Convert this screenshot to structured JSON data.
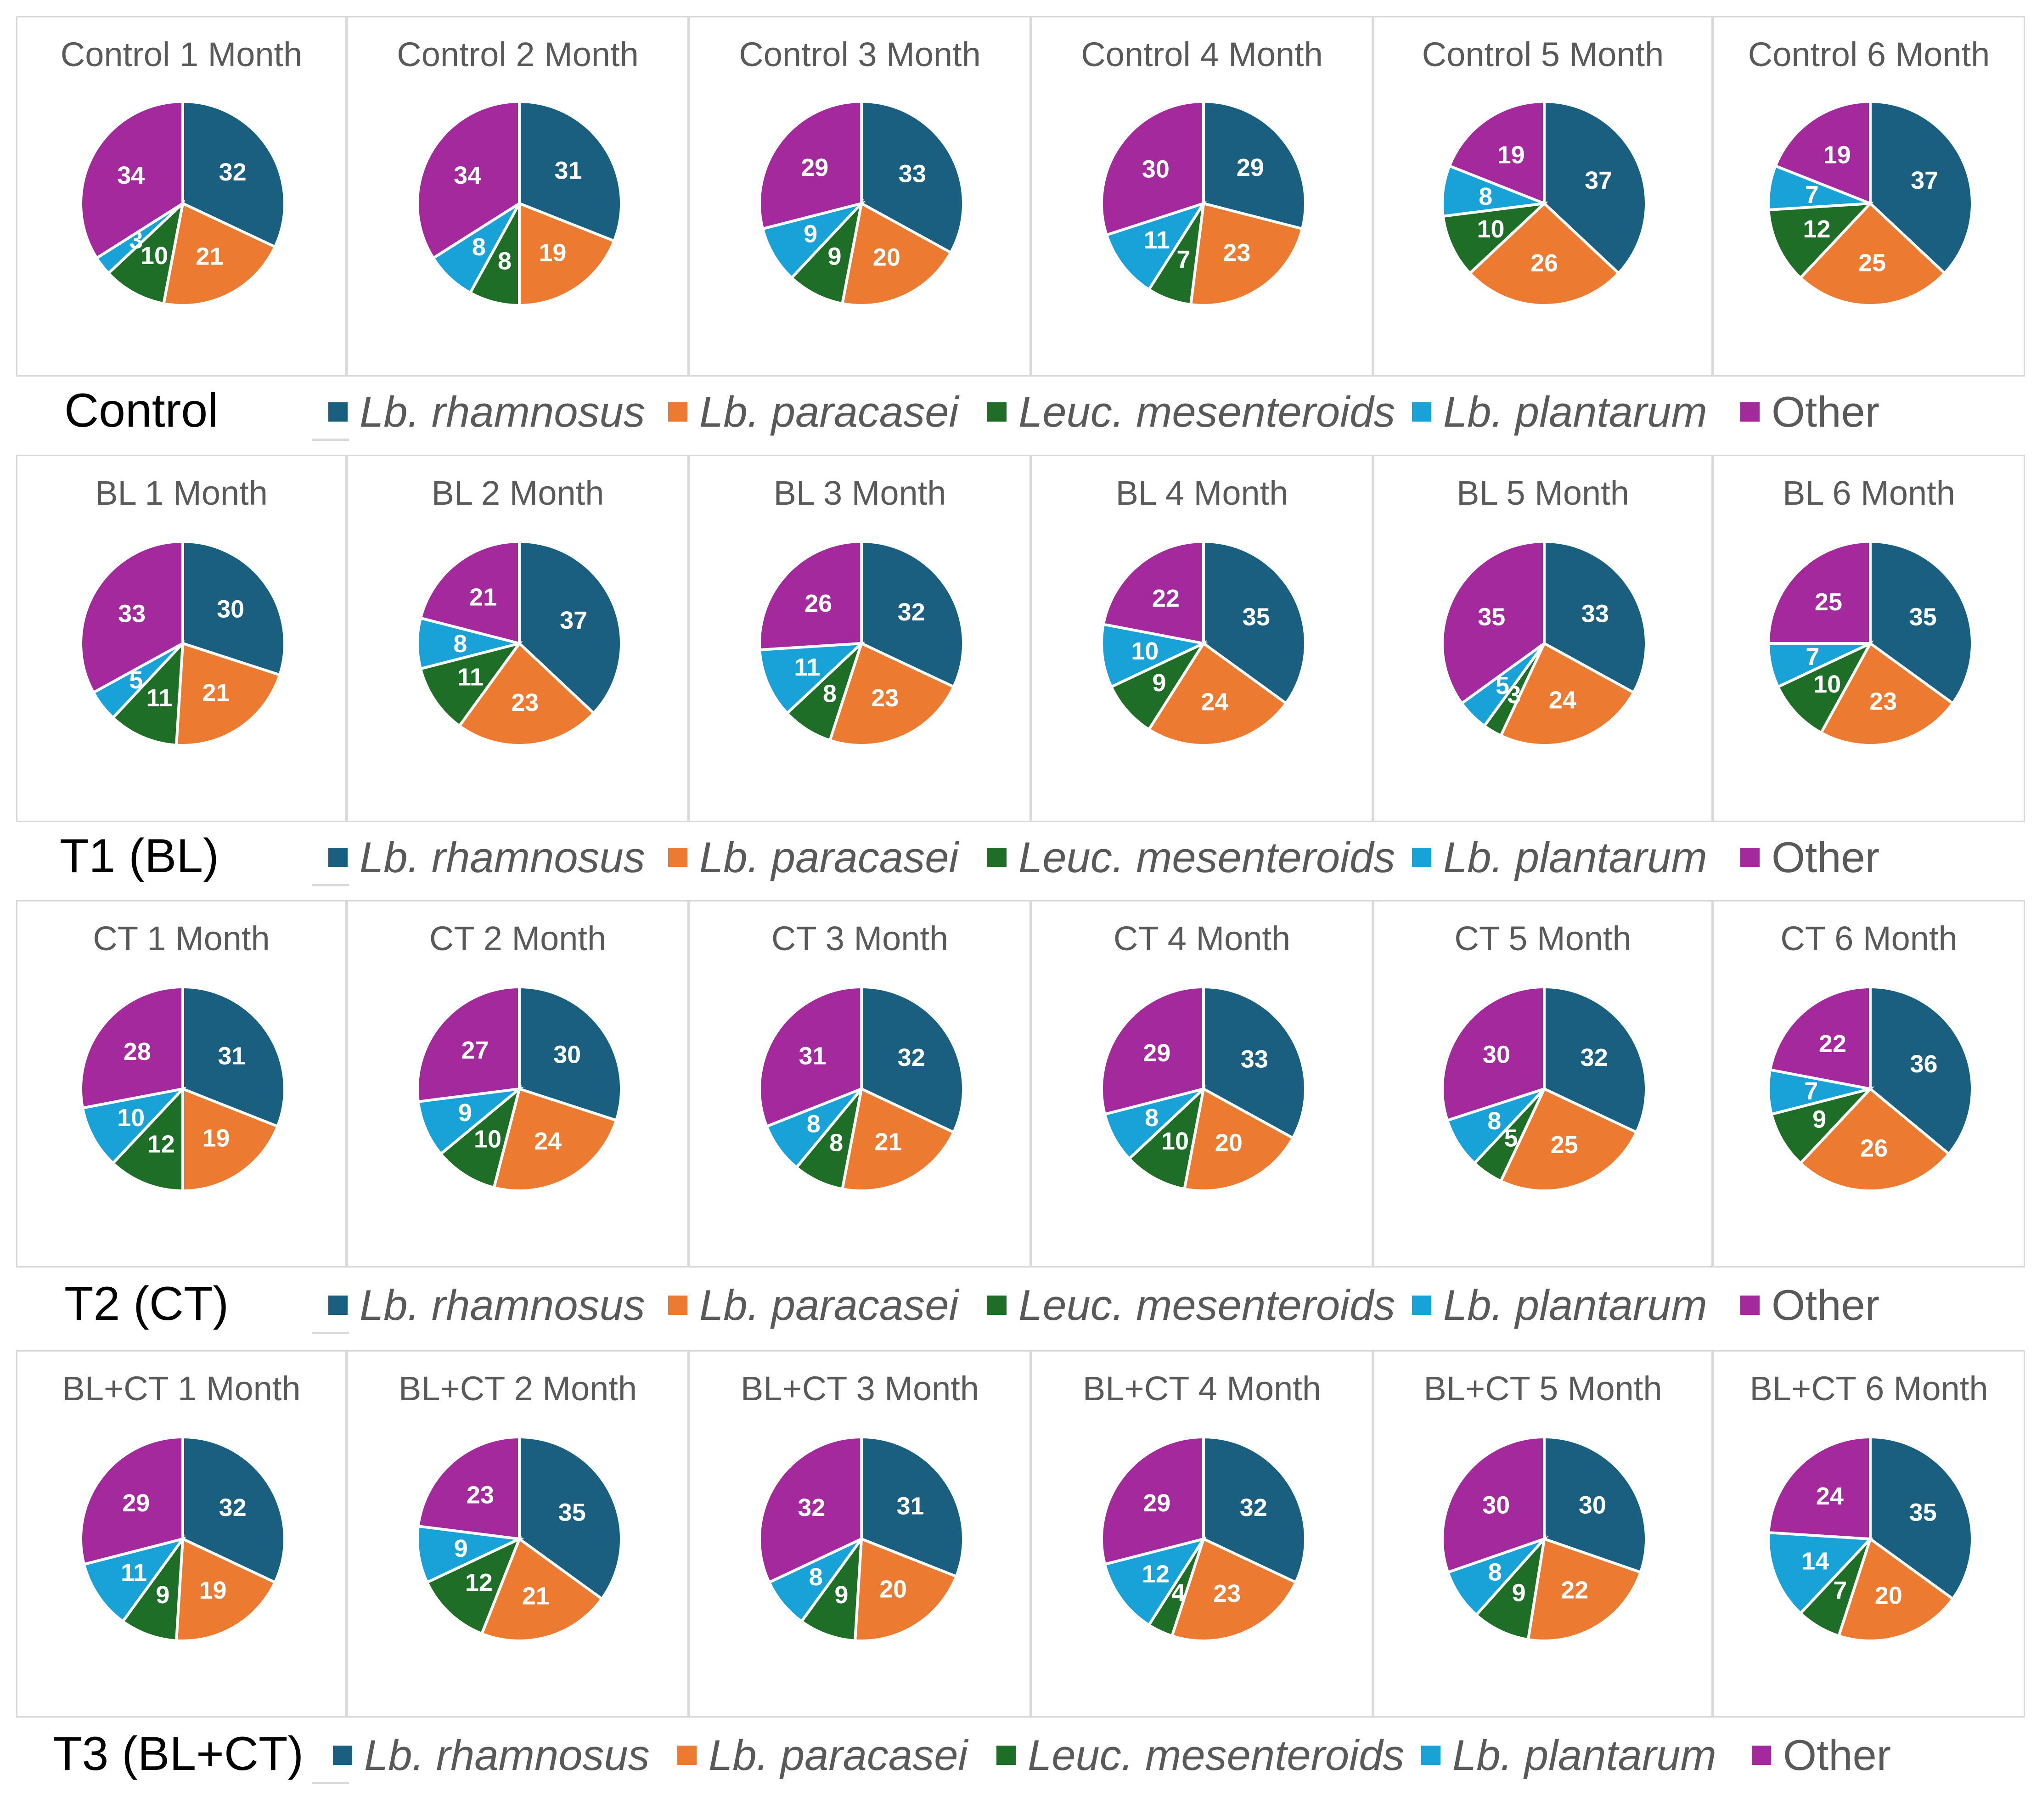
{
  "colors": {
    "Lb. rhamnosus": "#1a5f80",
    "Lb. paracasei": "#ed7a31",
    "Leuc. mesenteroids": "#1f6e28",
    "Lb. plantarum": "#18a2d8",
    "Other": "#a3299c"
  },
  "legend": [
    {
      "label": "Lb. rhamnosus",
      "italic": true
    },
    {
      "label": "Lb. paracasei",
      "italic": true
    },
    {
      "label": "Leuc. mesenteroids",
      "italic": true
    },
    {
      "label": "Lb. plantarum",
      "italic": true
    },
    {
      "label": "Other",
      "italic": false
    }
  ],
  "groups": [
    "Control",
    "T1 (BL)",
    "T2 (CT)",
    "T3 (BL+CT)"
  ],
  "chart_data": [
    {
      "type": "pie",
      "group": "Control",
      "title": "Control 1 Month",
      "categories": [
        "Lb. rhamnosus",
        "Lb. paracasei",
        "Leuc. mesenteroids",
        "Lb. plantarum",
        "Other"
      ],
      "values": [
        32,
        21,
        10,
        3,
        34
      ]
    },
    {
      "type": "pie",
      "group": "Control",
      "title": "Control 2 Month",
      "categories": [
        "Lb. rhamnosus",
        "Lb. paracasei",
        "Leuc. mesenteroids",
        "Lb. plantarum",
        "Other"
      ],
      "values": [
        31,
        19,
        8,
        8,
        34
      ]
    },
    {
      "type": "pie",
      "group": "Control",
      "title": "Control 3 Month",
      "categories": [
        "Lb. rhamnosus",
        "Lb. paracasei",
        "Leuc. mesenteroids",
        "Lb. plantarum",
        "Other"
      ],
      "values": [
        33,
        20,
        9,
        9,
        29
      ]
    },
    {
      "type": "pie",
      "group": "Control",
      "title": "Control 4 Month",
      "categories": [
        "Lb. rhamnosus",
        "Lb. paracasei",
        "Leuc. mesenteroids",
        "Lb. plantarum",
        "Other"
      ],
      "values": [
        29,
        23,
        7,
        11,
        30
      ]
    },
    {
      "type": "pie",
      "group": "Control",
      "title": "Control 5 Month",
      "categories": [
        "Lb. rhamnosus",
        "Lb. paracasei",
        "Leuc. mesenteroids",
        "Lb. plantarum",
        "Other"
      ],
      "values": [
        37,
        26,
        10,
        8,
        19
      ]
    },
    {
      "type": "pie",
      "group": "Control",
      "title": "Control 6 Month",
      "categories": [
        "Lb. rhamnosus",
        "Lb. paracasei",
        "Leuc. mesenteroids",
        "Lb. plantarum",
        "Other"
      ],
      "values": [
        37,
        25,
        12,
        7,
        19
      ]
    },
    {
      "type": "pie",
      "group": "T1 (BL)",
      "title": "BL 1 Month",
      "categories": [
        "Lb. rhamnosus",
        "Lb. paracasei",
        "Leuc. mesenteroids",
        "Lb. plantarum",
        "Other"
      ],
      "values": [
        30,
        21,
        11,
        5,
        33
      ]
    },
    {
      "type": "pie",
      "group": "T1 (BL)",
      "title": "BL 2 Month",
      "categories": [
        "Lb. rhamnosus",
        "Lb. paracasei",
        "Leuc. mesenteroids",
        "Lb. plantarum",
        "Other"
      ],
      "values": [
        37,
        23,
        11,
        8,
        21
      ]
    },
    {
      "type": "pie",
      "group": "T1 (BL)",
      "title": "BL 3 Month",
      "categories": [
        "Lb. rhamnosus",
        "Lb. paracasei",
        "Leuc. mesenteroids",
        "Lb. plantarum",
        "Other"
      ],
      "values": [
        32,
        23,
        8,
        11,
        26
      ]
    },
    {
      "type": "pie",
      "group": "T1 (BL)",
      "title": "BL 4 Month",
      "categories": [
        "Lb. rhamnosus",
        "Lb. paracasei",
        "Leuc. mesenteroids",
        "Lb. plantarum",
        "Other"
      ],
      "values": [
        35,
        24,
        9,
        10,
        22
      ]
    },
    {
      "type": "pie",
      "group": "T1 (BL)",
      "title": "BL 5 Month",
      "categories": [
        "Lb. rhamnosus",
        "Lb. paracasei",
        "Leuc. mesenteroids",
        "Lb. plantarum",
        "Other"
      ],
      "values": [
        33,
        24,
        3,
        5,
        35
      ]
    },
    {
      "type": "pie",
      "group": "T1 (BL)",
      "title": "BL 6 Month",
      "categories": [
        "Lb. rhamnosus",
        "Lb. paracasei",
        "Leuc. mesenteroids",
        "Lb. plantarum",
        "Other"
      ],
      "values": [
        35,
        23,
        10,
        7,
        25
      ]
    },
    {
      "type": "pie",
      "group": "T2 (CT)",
      "title": "CT 1 Month",
      "categories": [
        "Lb. rhamnosus",
        "Lb. paracasei",
        "Leuc. mesenteroids",
        "Lb. plantarum",
        "Other"
      ],
      "values": [
        31,
        19,
        12,
        10,
        28
      ]
    },
    {
      "type": "pie",
      "group": "T2 (CT)",
      "title": "CT 2 Month",
      "categories": [
        "Lb. rhamnosus",
        "Lb. paracasei",
        "Leuc. mesenteroids",
        "Lb. plantarum",
        "Other"
      ],
      "values": [
        30,
        24,
        10,
        9,
        27
      ]
    },
    {
      "type": "pie",
      "group": "T2 (CT)",
      "title": "CT 3 Month",
      "categories": [
        "Lb. rhamnosus",
        "Lb. paracasei",
        "Leuc. mesenteroids",
        "Lb. plantarum",
        "Other"
      ],
      "values": [
        32,
        21,
        8,
        8,
        31
      ]
    },
    {
      "type": "pie",
      "group": "T2 (CT)",
      "title": "CT 4 Month",
      "categories": [
        "Lb. rhamnosus",
        "Lb. paracasei",
        "Leuc. mesenteroids",
        "Lb. plantarum",
        "Other"
      ],
      "values": [
        33,
        20,
        10,
        8,
        29
      ]
    },
    {
      "type": "pie",
      "group": "T2 (CT)",
      "title": "CT 5 Month",
      "categories": [
        "Lb. rhamnosus",
        "Lb. paracasei",
        "Leuc. mesenteroids",
        "Lb. plantarum",
        "Other"
      ],
      "values": [
        32,
        25,
        5,
        8,
        30
      ]
    },
    {
      "type": "pie",
      "group": "T2 (CT)",
      "title": "CT 6 Month",
      "categories": [
        "Lb. rhamnosus",
        "Lb. paracasei",
        "Leuc. mesenteroids",
        "Lb. plantarum",
        "Other"
      ],
      "values": [
        36,
        26,
        9,
        7,
        22
      ]
    },
    {
      "type": "pie",
      "group": "T3 (BL+CT)",
      "title": "BL+CT  1 Month",
      "categories": [
        "Lb. rhamnosus",
        "Lb. paracasei",
        "Leuc. mesenteroids",
        "Lb. plantarum",
        "Other"
      ],
      "values": [
        32,
        19,
        9,
        11,
        29
      ]
    },
    {
      "type": "pie",
      "group": "T3 (BL+CT)",
      "title": "BL+CT  2 Month",
      "categories": [
        "Lb. rhamnosus",
        "Lb. paracasei",
        "Leuc. mesenteroids",
        "Lb. plantarum",
        "Other"
      ],
      "values": [
        35,
        21,
        12,
        9,
        23
      ]
    },
    {
      "type": "pie",
      "group": "T3 (BL+CT)",
      "title": "BL+CT  3 Month",
      "categories": [
        "Lb. rhamnosus",
        "Lb. paracasei",
        "Leuc. mesenteroids",
        "Lb. plantarum",
        "Other"
      ],
      "values": [
        31,
        20,
        9,
        8,
        32
      ]
    },
    {
      "type": "pie",
      "group": "T3 (BL+CT)",
      "title": "BL+CT  4 Month",
      "categories": [
        "Lb. rhamnosus",
        "Lb. paracasei",
        "Leuc. mesenteroids",
        "Lb. plantarum",
        "Other"
      ],
      "values": [
        32,
        23,
        4,
        12,
        29
      ]
    },
    {
      "type": "pie",
      "group": "T3 (BL+CT)",
      "title": "BL+CT  5 Month",
      "categories": [
        "Lb. rhamnosus",
        "Lb. paracasei",
        "Leuc. mesenteroids",
        "Lb. plantarum",
        "Other"
      ],
      "values": [
        30,
        22,
        9,
        8,
        30
      ]
    },
    {
      "type": "pie",
      "group": "T3 (BL+CT)",
      "title": "BL+CT  6 Month",
      "categories": [
        "Lb. rhamnosus",
        "Lb. paracasei",
        "Leuc. mesenteroids",
        "Lb. plantarum",
        "Other"
      ],
      "values": [
        35,
        20,
        7,
        14,
        24
      ]
    }
  ]
}
